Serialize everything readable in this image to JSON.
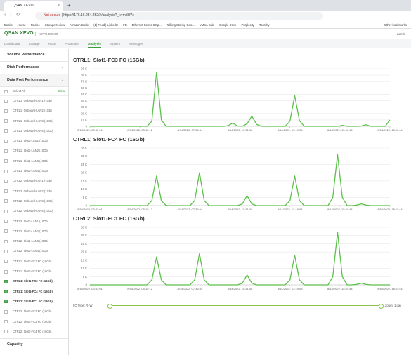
{
  "browser": {
    "tab_title": "QSAN XEVO",
    "security": "Not secure",
    "url": "https://176.16.254.252/#/analysis?_k=mti8f7c",
    "bookmarks": [
      "Books",
      "House",
      "Recipe",
      "StorageReview",
      "Amazon Smile",
      "(1) Feed | LinkedIn",
      "FB",
      "Ethernet Comic Strip...",
      "Talking Storing Goo...",
      "VMSA Calc",
      "Google Drive",
      "Purplecity",
      "Tourchy"
    ],
    "other_bookmarks": "Other bookmarks"
  },
  "app": {
    "brand": "QSAN XEVO",
    "system_name": "XEVO-DEMO",
    "user": "admin",
    "nav": [
      "Dashboard",
      "Storage",
      "Hosts",
      "Protection",
      "Analysis",
      "System",
      "Messages"
    ],
    "active_nav_index": 4
  },
  "sidebar": {
    "sections": [
      "Volume Performance",
      "Disk Performance",
      "Data Port Performance"
    ],
    "select_all": "Select All",
    "clear": "Clear",
    "ports": [
      {
        "label": "CTRL1: Onboard-LAN1 (1Gb)",
        "checked": false
      },
      {
        "label": "CTRL1: Onboard-LAN2 (1Gb)",
        "checked": false
      },
      {
        "label": "CTRL1: Onboard-LAN3 (10Gb)",
        "checked": false
      },
      {
        "label": "CTRL1: Onboard-LAN4 (10Gb)",
        "checked": false
      },
      {
        "label": "CTRL1: Slot2-LAN1 (10Gb)",
        "checked": false
      },
      {
        "label": "CTRL1: Slot2-LAN2 (10Gb)",
        "checked": false
      },
      {
        "label": "CTRL1: Slot2-LAN3 (10Gb)",
        "checked": false
      },
      {
        "label": "CTRL1: Slot2-LAN4 (10Gb)",
        "checked": false
      },
      {
        "label": "CTRL2: Onboard-LAN1 (1Gb)",
        "checked": false
      },
      {
        "label": "CTRL2: Onboard-LAN2 (1Gb)",
        "checked": false
      },
      {
        "label": "CTRL2: Onboard-LAN3 (10Gb)",
        "checked": false
      },
      {
        "label": "CTRL2: Onboard-LAN4 (10Gb)",
        "checked": false
      },
      {
        "label": "CTRL2: Slot2-LAN1 (10Gb)",
        "checked": false
      },
      {
        "label": "CTRL2: Slot2-LAN2 (10Gb)",
        "checked": false
      },
      {
        "label": "CTRL2: Slot2-LAN3 (10Gb)",
        "checked": false
      },
      {
        "label": "CTRL2: Slot2-LAN4 (10Gb)",
        "checked": false
      },
      {
        "label": "CTRL1: Slot1-FC1 FC (16Gb)",
        "checked": false
      },
      {
        "label": "CTRL1: Slot1-FC2 FC (16Gb)",
        "checked": false
      },
      {
        "label": "CTRL1: Slot1-FC3 FC (16Gb)",
        "checked": true
      },
      {
        "label": "CTRL1: Slot1-FC4 FC (16Gb)",
        "checked": true
      },
      {
        "label": "CTRL2: Slot1-FC1 FC (16Gb)",
        "checked": true
      },
      {
        "label": "CTRL2: Slot1-FC2 FC (16Gb)",
        "checked": false
      },
      {
        "label": "CTRL2: Slot1-FC3 FC (16Gb)",
        "checked": false
      },
      {
        "label": "CTRL2: Slot1-FC4 FC (16Gb)",
        "checked": false
      }
    ],
    "footer_section": "Capacity"
  },
  "charts": [
    {
      "type": "line",
      "title": "CTRL1: Slot1-FC3 FC (16Gb)",
      "color": "#5cc14a",
      "ylim": [
        0,
        90000
      ],
      "yticks": [
        {
          "value": 0,
          "label": "0"
        },
        {
          "value": 10000,
          "label": "10 K"
        },
        {
          "value": 20000,
          "label": "20 K"
        },
        {
          "value": 30000,
          "label": "30 K"
        },
        {
          "value": 40000,
          "label": "40 K"
        },
        {
          "value": 50000,
          "label": "50 K"
        },
        {
          "value": 60000,
          "label": "60 K"
        },
        {
          "value": 70000,
          "label": "70 K"
        },
        {
          "value": 80000,
          "label": "80 K"
        },
        {
          "value": 90000,
          "label": "90 K"
        }
      ],
      "x_labels": [
        "8/14/2022, 03:33:01",
        "8/14/2022, 05:15:12",
        "8/14/2022, 07:35:34",
        "8/14/2022, 10:31:08",
        "8/14/2022, 13:19:08",
        "8/14/2022, 15:51:44",
        "8/14/2022, 18:11:44"
      ],
      "values": [
        0,
        0,
        0,
        0,
        0,
        0,
        0,
        0,
        0,
        0,
        0,
        0,
        0,
        8000,
        85000,
        10000,
        0,
        0,
        0,
        0,
        0,
        0,
        0,
        0,
        0,
        0,
        0,
        0,
        0,
        1000,
        5000,
        500,
        0,
        4000,
        16000,
        3000,
        0,
        0,
        0,
        0,
        0,
        0,
        8000,
        48000,
        9000,
        0,
        0,
        0,
        0,
        0,
        0,
        0,
        0,
        1500,
        0,
        0,
        0,
        500,
        2500,
        0,
        0,
        0,
        0,
        10000
      ]
    },
    {
      "type": "line",
      "title": "CTRL1: Slot1-FC4 FC (16Gb)",
      "color": "#5cc14a",
      "ylim": [
        0,
        35000
      ],
      "yticks": [
        {
          "value": 0,
          "label": "0"
        },
        {
          "value": 5000,
          "label": "5 K"
        },
        {
          "value": 10000,
          "label": "10 K"
        },
        {
          "value": 15000,
          "label": "15 K"
        },
        {
          "value": 20000,
          "label": "20 K"
        },
        {
          "value": 25000,
          "label": "25 K"
        },
        {
          "value": 30000,
          "label": "30 K"
        },
        {
          "value": 35000,
          "label": "35 K"
        }
      ],
      "x_labels": [
        "8/14/2022, 03:33:01",
        "8/14/2022, 05:15:12",
        "8/14/2022, 07:35:34",
        "8/14/2022, 10:31:08",
        "8/14/2022, 13:19:08",
        "8/14/2022, 15:51:44",
        "8/14/2022, 18:11:44"
      ],
      "values": [
        0,
        0,
        0,
        0,
        0,
        0,
        0,
        0,
        0,
        0,
        0,
        0,
        0,
        3000,
        18000,
        3000,
        0,
        0,
        0,
        0,
        0,
        0,
        3000,
        20000,
        3000,
        0,
        0,
        0,
        0,
        0,
        0,
        0,
        1000,
        6000,
        1000,
        0,
        0,
        0,
        0,
        0,
        0,
        0,
        3000,
        18000,
        3000,
        0,
        0,
        0,
        0,
        0,
        0,
        5000,
        31000,
        5000,
        0,
        0,
        300,
        1000,
        300,
        0,
        0,
        0,
        0,
        0
      ]
    },
    {
      "type": "line",
      "title": "CTRL2: Slot1-FC1 FC (16Gb)",
      "color": "#5cc14a",
      "ylim": [
        0,
        35000
      ],
      "yticks": [
        {
          "value": 0,
          "label": "0"
        },
        {
          "value": 5000,
          "label": "5 K"
        },
        {
          "value": 10000,
          "label": "10 K"
        },
        {
          "value": 15000,
          "label": "15 K"
        },
        {
          "value": 20000,
          "label": "20 K"
        },
        {
          "value": 25000,
          "label": "25 K"
        },
        {
          "value": 30000,
          "label": "30 K"
        },
        {
          "value": 35000,
          "label": "35 K"
        }
      ],
      "x_labels": [
        "8/14/2022, 03:33:01",
        "8/14/2022, 05:15:12",
        "8/14/2022, 07:35:34",
        "8/14/2022, 10:31:08",
        "8/14/2022, 13:19:08",
        "8/14/2022, 15:51:44",
        "8/14/2022, 18:11:44"
      ],
      "values": [
        0,
        0,
        0,
        0,
        0,
        0,
        0,
        0,
        0,
        0,
        0,
        0,
        0,
        3000,
        17000,
        3000,
        0,
        0,
        0,
        0,
        0,
        0,
        3000,
        19000,
        3000,
        0,
        0,
        0,
        0,
        0,
        0,
        0,
        1000,
        6000,
        1000,
        0,
        0,
        0,
        0,
        0,
        0,
        0,
        3000,
        18000,
        3000,
        0,
        0,
        0,
        0,
        0,
        0,
        5000,
        32000,
        5000,
        0,
        0,
        300,
        1000,
        300,
        0,
        0,
        0,
        0,
        0
      ]
    }
  ],
  "footer": {
    "io_type": "I/O Type: R+W",
    "zoom": "Zoom: 1 day"
  }
}
